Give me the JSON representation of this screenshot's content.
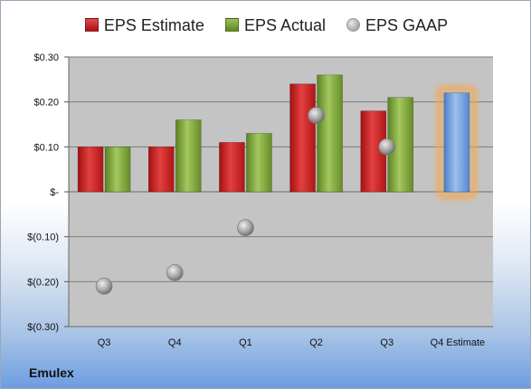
{
  "company": "Emulex",
  "legend": [
    {
      "label": "EPS Estimate",
      "color": "#cc1f1f",
      "kind": "bar"
    },
    {
      "label": "EPS Actual",
      "color": "#7fa33a",
      "kind": "bar"
    },
    {
      "label": "EPS GAAP",
      "color": "#9a9a9a",
      "kind": "dot"
    }
  ],
  "chart_data": {
    "type": "bar",
    "categories": [
      "Q3",
      "Q4",
      "Q1",
      "Q2",
      "Q3",
      "Q4 Estimate"
    ],
    "series": [
      {
        "name": "EPS Estimate",
        "values": [
          0.1,
          0.1,
          0.11,
          0.24,
          0.18,
          null
        ]
      },
      {
        "name": "EPS Actual",
        "values": [
          0.1,
          0.16,
          0.13,
          0.26,
          0.21,
          null
        ]
      },
      {
        "name": "EPS GAAP",
        "values": [
          -0.21,
          -0.18,
          -0.08,
          0.17,
          0.1,
          null
        ]
      }
    ],
    "forecast": {
      "category": "Q4 Estimate",
      "value": 0.22,
      "color": "#6f9edc",
      "glow": "#f5a74a"
    },
    "yticks": [
      0.3,
      0.2,
      0.1,
      0.0,
      -0.1,
      -0.2,
      -0.3
    ],
    "ytick_labels": [
      "$0.30",
      "$0.20",
      "$0.10",
      "$-",
      "$(0.10)",
      "$(0.20)",
      "$(0.30)"
    ],
    "ylim": [
      -0.3,
      0.3
    ],
    "grid": true,
    "legend_position": "top",
    "colors": {
      "estimate": "#cc1f1f",
      "actual": "#7fa33a",
      "gaap": "#9a9a9a",
      "plot_bg": "#c4c4c4"
    }
  }
}
